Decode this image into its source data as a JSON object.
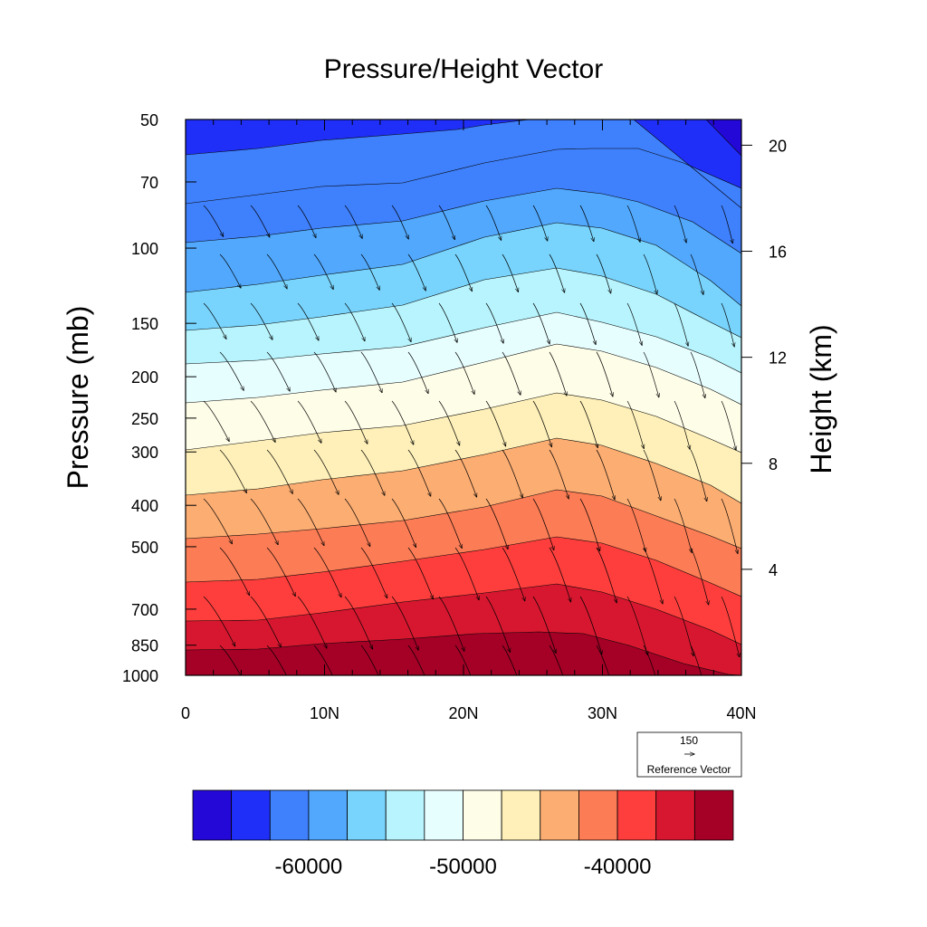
{
  "chart_data": {
    "type": "contour-vector",
    "title": "Pressure/Height Vector",
    "xlabel": "",
    "ylabel_left": "Pressure (mb)",
    "ylabel_right": "Height (km)",
    "x_ticks": [
      {
        "value": 0,
        "label": "0"
      },
      {
        "value": 10,
        "label": "10N"
      },
      {
        "value": 20,
        "label": "20N"
      },
      {
        "value": 30,
        "label": "30N"
      },
      {
        "value": 40,
        "label": "40N"
      }
    ],
    "xlim": [
      0,
      40
    ],
    "pressure_ticks": [
      {
        "value": 50,
        "label": "50"
      },
      {
        "value": 70,
        "label": "70"
      },
      {
        "value": 100,
        "label": "100"
      },
      {
        "value": 150,
        "label": "150"
      },
      {
        "value": 200,
        "label": "200"
      },
      {
        "value": 250,
        "label": "250"
      },
      {
        "value": 300,
        "label": "300"
      },
      {
        "value": 400,
        "label": "400"
      },
      {
        "value": 500,
        "label": "500"
      },
      {
        "value": 700,
        "label": "700"
      },
      {
        "value": 850,
        "label": "850"
      },
      {
        "value": 1000,
        "label": "1000"
      }
    ],
    "pressure_range": [
      1000,
      50
    ],
    "height_ticks": [
      {
        "value": 4,
        "label": "4"
      },
      {
        "value": 8,
        "label": "8"
      },
      {
        "value": 12,
        "label": "12"
      },
      {
        "value": 16,
        "label": "16"
      },
      {
        "value": 20,
        "label": "20"
      }
    ],
    "contour_fill_colors": [
      "#a50026",
      "#d7172f",
      "#fd3e3c",
      "#fc7c55",
      "#fcad72",
      "#fef0b8",
      "#fefde8",
      "#e7feff",
      "#b7f4fd",
      "#78d4fd",
      "#51a8fd",
      "#3f80fc",
      "#1f2ff8",
      "#2308d8"
    ],
    "colorbar": {
      "colors": [
        "#2308d8",
        "#1f2ff8",
        "#3f80fc",
        "#51a8fd",
        "#78d4fd",
        "#b7f4fd",
        "#e7feff",
        "#fefde8",
        "#fef0b8",
        "#fcad72",
        "#fc7c55",
        "#fd3e3c",
        "#d7172f",
        "#a50026"
      ],
      "labels": [
        {
          "value": -60000,
          "label": "-60000"
        },
        {
          "value": -50000,
          "label": "-50000"
        },
        {
          "value": -40000,
          "label": "-40000"
        }
      ]
    },
    "reference_vector": {
      "magnitude": "150",
      "label": "Reference Vector"
    }
  }
}
